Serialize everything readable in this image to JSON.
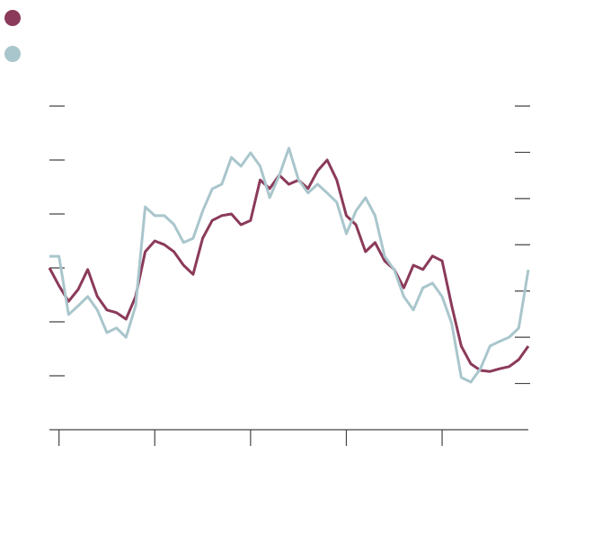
{
  "chart_data": {
    "type": "line",
    "x": [
      0,
      2,
      4,
      6,
      8,
      10,
      12,
      14,
      16,
      18,
      20,
      22,
      24,
      26,
      28,
      30,
      32,
      34,
      36,
      38,
      40,
      42,
      44,
      46,
      48,
      50,
      52,
      54,
      56,
      58,
      60,
      62,
      64,
      66,
      68,
      70,
      72,
      74,
      76,
      78,
      80,
      82,
      84,
      86,
      88,
      90,
      92,
      94,
      96,
      98,
      100
    ],
    "xlim": [
      0,
      100
    ],
    "xticks": [
      2,
      22,
      42,
      62,
      82
    ],
    "ylim": [
      0,
      6
    ],
    "yticks": [
      1,
      2,
      3,
      4,
      5,
      6
    ],
    "y2lim": [
      0,
      7
    ],
    "y2ticks": [
      1,
      2,
      3,
      4,
      5,
      6,
      7
    ],
    "series": [
      {
        "color": "#8b3a5a",
        "values": [
          3.0,
          2.67,
          2.38,
          2.6,
          2.97,
          2.47,
          2.22,
          2.17,
          2.05,
          2.47,
          3.3,
          3.5,
          3.43,
          3.3,
          3.05,
          2.88,
          3.55,
          3.88,
          3.97,
          4.0,
          3.8,
          3.88,
          4.63,
          4.47,
          4.72,
          4.55,
          4.63,
          4.47,
          4.8,
          5.0,
          4.63,
          3.97,
          3.8,
          3.3,
          3.47,
          3.13,
          2.97,
          2.63,
          3.05,
          2.97,
          3.22,
          3.13,
          2.3,
          1.55,
          1.22,
          1.1,
          1.08,
          1.13,
          1.17,
          1.3,
          1.55
        ]
      },
      {
        "color": "#a9c6cc",
        "axis": "y2",
        "values": [
          3.75,
          3.75,
          2.49,
          2.68,
          2.88,
          2.59,
          2.1,
          2.2,
          2.0,
          2.68,
          4.82,
          4.63,
          4.63,
          4.44,
          4.05,
          4.14,
          4.73,
          5.21,
          5.31,
          5.89,
          5.7,
          5.99,
          5.7,
          5.02,
          5.5,
          6.09,
          5.41,
          5.12,
          5.31,
          5.12,
          4.92,
          4.24,
          4.73,
          5.02,
          4.63,
          3.75,
          3.46,
          2.88,
          2.59,
          3.07,
          3.17,
          2.88,
          2.3,
          1.13,
          1.03,
          1.32,
          1.81,
          1.91,
          2.0,
          2.2,
          3.46
        ]
      }
    ]
  }
}
